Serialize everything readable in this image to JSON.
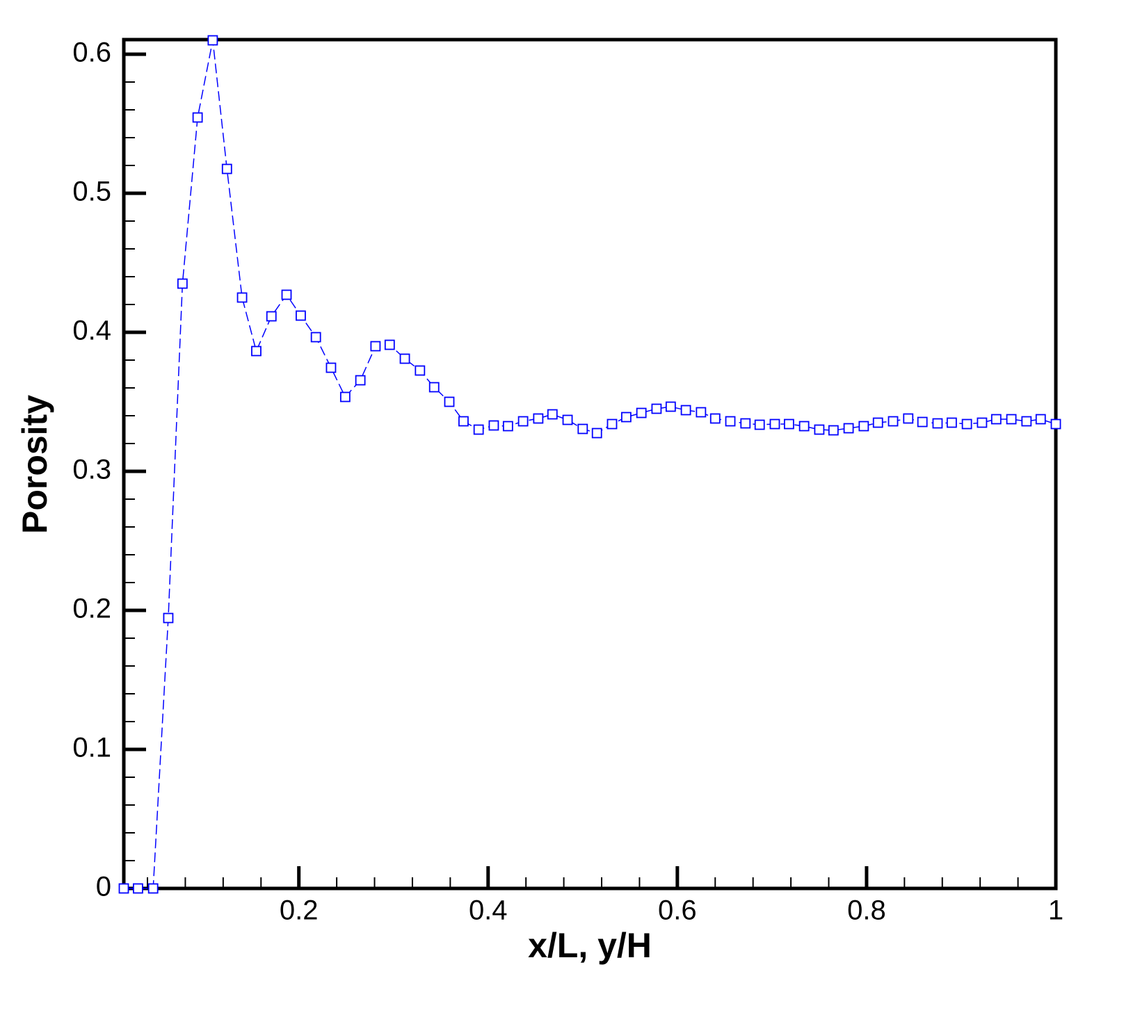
{
  "chart_data": {
    "type": "line",
    "x_label": "x/L, y/H",
    "y_label": "Porosity",
    "x": [
      0.015,
      0.03,
      0.046,
      0.062,
      0.077,
      0.093,
      0.109,
      0.124,
      0.14,
      0.155,
      0.171,
      0.187,
      0.202,
      0.218,
      0.234,
      0.249,
      0.265,
      0.281,
      0.296,
      0.312,
      0.328,
      0.343,
      0.359,
      0.374,
      0.39,
      0.406,
      0.421,
      0.437,
      0.453,
      0.468,
      0.484,
      0.5,
      0.515,
      0.531,
      0.546,
      0.562,
      0.578,
      0.593,
      0.609,
      0.625,
      0.64,
      0.656,
      0.672,
      0.687,
      0.703,
      0.718,
      0.734,
      0.75,
      0.765,
      0.781,
      0.797,
      0.812,
      0.828,
      0.844,
      0.859,
      0.875,
      0.89,
      0.906,
      0.922,
      0.937,
      0.953,
      0.969,
      0.984,
      1.0
    ],
    "series": [
      {
        "color": "#0000ff",
        "marker": "square",
        "dash": true,
        "values": [
          0,
          0,
          0,
          0.1945,
          0.435,
          0.5545,
          0.61,
          0.5175,
          0.425,
          0.3865,
          0.4115,
          0.427,
          0.412,
          0.3965,
          0.3745,
          0.3535,
          0.3655,
          0.39,
          0.391,
          0.381,
          0.3725,
          0.3605,
          0.35,
          0.336,
          0.33,
          0.333,
          0.3325,
          0.336,
          0.338,
          0.341,
          0.337,
          0.3305,
          0.3275,
          0.334,
          0.339,
          0.342,
          0.345,
          0.3465,
          0.344,
          0.3425,
          0.338,
          0.336,
          0.3345,
          0.3335,
          0.334,
          0.334,
          0.3325,
          0.33,
          0.3295,
          0.331,
          0.3325,
          0.335,
          0.336,
          0.338,
          0.3355,
          0.3345,
          0.335,
          0.334,
          0.335,
          0.3375,
          0.3375,
          0.336,
          0.3375,
          0.334
        ]
      }
    ],
    "xlim": [
      0.015,
      1
    ],
    "ylim": [
      0,
      0.6105
    ],
    "xticks": [
      0.2,
      0.4,
      0.6,
      0.8,
      1
    ],
    "yticks": [
      0,
      0.1,
      0.2,
      0.3,
      0.4,
      0.5,
      0.6
    ],
    "xminorticks": [
      0.04,
      0.08,
      0.12,
      0.16,
      0.24,
      0.28,
      0.32,
      0.36,
      0.44,
      0.48,
      0.52,
      0.56,
      0.64,
      0.68,
      0.72,
      0.76,
      0.84,
      0.88,
      0.92,
      0.96
    ],
    "yminorticks": [
      0.02,
      0.04,
      0.06,
      0.08,
      0.12,
      0.14,
      0.16,
      0.18,
      0.22,
      0.24,
      0.26,
      0.28,
      0.32,
      0.34,
      0.36,
      0.38,
      0.42,
      0.44,
      0.46,
      0.48,
      0.52,
      0.54,
      0.56,
      0.58
    ]
  }
}
